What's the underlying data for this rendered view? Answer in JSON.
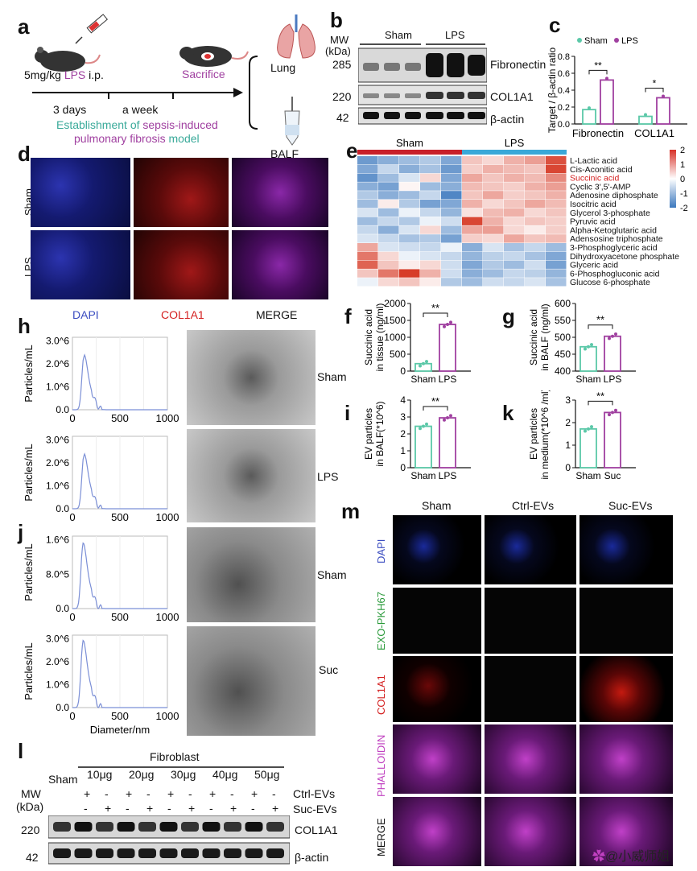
{
  "panels": {
    "a": "a",
    "b": "b",
    "c": "c",
    "d": "d",
    "e": "e",
    "f": "f",
    "g": "g",
    "h": "h",
    "i": "i",
    "j": "j",
    "k": "k",
    "l": "l",
    "m": "m"
  },
  "panel_a": {
    "dose_pre": "5mg/kg ",
    "dose_lps": "LPS",
    "dose_post": " i.p.",
    "sacrifice": "Sacrifice",
    "lung": "Lung",
    "balf": "BALF",
    "days": "3 days",
    "week": "a week",
    "caption1_a": "Establishment of ",
    "caption1_b": "sepsis-induced",
    "caption2_a": "pulmonary fibrosis",
    "caption2_b": " model"
  },
  "panel_b": {
    "mw": "MW",
    "kda": "(kDa)",
    "groups": [
      "Sham",
      "LPS"
    ],
    "rows": [
      {
        "mw": "285",
        "name": "Fibronectin"
      },
      {
        "mw": "220",
        "name": "COL1A1"
      },
      {
        "mw": "42",
        "name": "β-actin"
      }
    ]
  },
  "colors": {
    "sham": "#5bc8a8",
    "lps": "#a040a0",
    "heat_hi": "#d73027",
    "heat_lo": "#4575b4",
    "dapi": "#3a4cc0",
    "col": "#d42020",
    "merge": "#8a2aa0",
    "pkh": "#2a9a3a",
    "phall": "#c040c0"
  },
  "chart_data": [
    {
      "id": "c",
      "type": "bar",
      "ylabel": "Target / β-actin ratio",
      "categories": [
        "Fibronectin",
        "COL1A1"
      ],
      "series": [
        {
          "name": "Sham",
          "values": [
            0.17,
            0.09
          ]
        },
        {
          "name": "LPS",
          "values": [
            0.52,
            0.31
          ]
        }
      ],
      "ylim": [
        0,
        0.8
      ],
      "yticks": [
        "0.0",
        "0.2",
        "0.4",
        "0.6",
        "0.8"
      ],
      "sig": [
        "**",
        "*"
      ]
    },
    {
      "id": "f",
      "type": "bar",
      "ylabel": "Succinic acid in tissue (ng/ml)",
      "categories": [
        "Sham",
        "LPS"
      ],
      "values": [
        220,
        1380
      ],
      "ylim": [
        0,
        2000
      ],
      "yticks": [
        "0",
        "500",
        "1000",
        "1500",
        "2000"
      ],
      "sig": "**"
    },
    {
      "id": "g",
      "type": "bar",
      "ylabel": "Succinic acid in BALF (ng/ml)",
      "categories": [
        "Sham",
        "LPS"
      ],
      "values": [
        472,
        503
      ],
      "ylim": [
        400,
        600
      ],
      "yticks": [
        "400",
        "450",
        "500",
        "550",
        "600"
      ],
      "sig": "**"
    },
    {
      "id": "i",
      "type": "bar",
      "ylabel": "EV particles in BALF(*10^6)",
      "categories": [
        "Sham",
        "LPS"
      ],
      "values": [
        2.45,
        2.95
      ],
      "ylim": [
        0,
        4
      ],
      "yticks": [
        "0",
        "1",
        "2",
        "3",
        "4"
      ],
      "sig": "**"
    },
    {
      "id": "k",
      "type": "bar",
      "ylabel": "EV particles in medium(*10^6 /ml)",
      "categories": [
        "Sham",
        "Suc"
      ],
      "values": [
        1.72,
        2.45
      ],
      "ylim": [
        0,
        3
      ],
      "yticks": [
        "0",
        "1",
        "2",
        "3"
      ],
      "sig": "**"
    },
    {
      "id": "h1",
      "type": "line",
      "ylabel": "Particles/mL",
      "xlim": [
        0,
        1000
      ],
      "xticks": [
        "0",
        "500",
        "1000"
      ],
      "yticks": [
        "0.0",
        "1.0^6",
        "2.0^6",
        "3.0^6"
      ],
      "peak": [
        120,
        2.3
      ],
      "ymax": 3
    },
    {
      "id": "h2",
      "type": "line",
      "ylabel": "Particles/mL",
      "xlim": [
        0,
        1000
      ],
      "xticks": [
        "0",
        "500",
        "1000"
      ],
      "yticks": [
        "0.0",
        "1.0^6",
        "2.0^6",
        "3.0^6"
      ],
      "peak": [
        120,
        2.3
      ],
      "ymax": 3
    },
    {
      "id": "j1",
      "type": "line",
      "ylabel": "Particles/mL",
      "xlim": [
        0,
        1000
      ],
      "xticks": [
        "0",
        "500",
        "1000"
      ],
      "yticks": [
        "0.0",
        "8.0^5",
        "1.6^6"
      ],
      "peak": [
        110,
        1.55
      ],
      "ymax": 1.7
    },
    {
      "id": "j2",
      "type": "line",
      "ylabel": "Particles/mL",
      "xlabel": "Diameter/nm",
      "xlim": [
        0,
        1000
      ],
      "xticks": [
        "0",
        "500",
        "1000"
      ],
      "yticks": [
        "0.0",
        "1.0^6",
        "2.0^6",
        "3.0^6"
      ],
      "peak": [
        110,
        2.8
      ],
      "ymax": 3
    }
  ],
  "panel_e": {
    "groups": [
      "Sham",
      "LPS"
    ],
    "scale": [
      "2",
      "1",
      "0",
      "-1",
      "-2"
    ],
    "metabolites": [
      "L-Lactic acid",
      "Cis-Aconitic acid",
      "Succinic acid",
      "Cyclic 3',5'-AMP",
      "Adenosine diphosphate",
      "Isocitric acid",
      "Glycerol 3-phosphate",
      "Pyruvic acid",
      "Alpha-Ketoglutaric acid",
      "Adensosine triphosphate",
      "3-Phosphoglyceric acid",
      "Dihydroxyacetone phosphate",
      "Glyceric acid",
      "6-Phosphogluconic acid",
      "Glucose 6-phosphate"
    ],
    "highlight": "Succinic acid",
    "matrix": [
      [
        -1.5,
        -1.2,
        -1.0,
        -0.8,
        -1.3,
        0.6,
        0.4,
        0.8,
        1.0,
        1.8
      ],
      [
        -1.3,
        -0.6,
        -1.2,
        -0.9,
        -1.5,
        0.5,
        0.8,
        0.7,
        0.6,
        1.9
      ],
      [
        -1.6,
        -1.0,
        -0.4,
        0.4,
        -1.3,
        0.9,
        0.6,
        0.8,
        0.7,
        1.2
      ],
      [
        -1.2,
        -1.4,
        0.1,
        -1.0,
        -1.2,
        0.7,
        0.6,
        0.5,
        0.8,
        1.0
      ],
      [
        -0.8,
        -1.2,
        -1.0,
        -0.6,
        -1.8,
        0.6,
        0.9,
        0.5,
        0.6,
        0.8
      ],
      [
        -1.0,
        0.2,
        -0.8,
        -1.4,
        -1.3,
        0.8,
        0.4,
        0.6,
        0.9,
        0.7
      ],
      [
        -0.4,
        -1.0,
        -0.2,
        -0.6,
        -1.1,
        0.3,
        0.7,
        0.8,
        0.4,
        0.6
      ],
      [
        -1.0,
        -0.6,
        -0.8,
        -0.2,
        -0.5,
        1.9,
        0.8,
        0.4,
        0.6,
        0.5
      ],
      [
        -0.6,
        -1.2,
        -0.4,
        0.4,
        -1.0,
        0.9,
        1.0,
        0.4,
        0.2,
        0.5
      ],
      [
        -0.4,
        -0.6,
        -0.9,
        -0.8,
        -1.4,
        0.5,
        0.4,
        0.9,
        0.6,
        0.7
      ],
      [
        0.9,
        -0.4,
        -0.5,
        -0.6,
        -0.2,
        -1.2,
        -0.4,
        -0.9,
        -0.6,
        -1.0
      ],
      [
        1.4,
        0.4,
        -0.2,
        -0.4,
        -0.6,
        -1.1,
        -0.7,
        -0.6,
        -0.9,
        -1.3
      ],
      [
        1.6,
        0.6,
        0.2,
        0.4,
        -0.5,
        -1.3,
        -0.8,
        -1.0,
        -0.5,
        -1.4
      ],
      [
        0.6,
        1.4,
        2.0,
        0.8,
        -0.5,
        -1.2,
        -1.0,
        -0.6,
        -0.7,
        -1.1
      ],
      [
        -0.2,
        0.4,
        0.6,
        0.2,
        -0.8,
        -1.0,
        -0.5,
        -0.6,
        -0.4,
        -0.9
      ]
    ]
  },
  "panel_d": {
    "rows": [
      "Sham",
      "LPS"
    ]
  },
  "panel_h": {
    "channels": [
      "DAPI",
      "COL1A1",
      "MERGE"
    ],
    "tem_labels": [
      "Sham",
      "LPS"
    ]
  },
  "panel_j": {
    "tem_labels": [
      "Sham",
      "Suc"
    ]
  },
  "panel_l": {
    "title": "Fibroblast",
    "sham": "Sham",
    "doses": [
      "10μg",
      "20μg",
      "30μg",
      "40μg",
      "50μg"
    ],
    "mw": "MW",
    "kda": "(kDa)",
    "ctrl": "Ctrl-EVs",
    "suc": "Suc-EVs",
    "plus": "+",
    "minus": "-",
    "rows": [
      {
        "mw": "220",
        "name": "COL1A1"
      },
      {
        "mw": "42",
        "name": "β-actin"
      }
    ]
  },
  "panel_m": {
    "cols": [
      "Sham",
      "Ctrl-EVs",
      "Suc-EVs"
    ],
    "rows": [
      "DAPI",
      "EXO-PKH67",
      "COL1A1",
      "PHALLOIDIN",
      "MERGE"
    ]
  },
  "watermark": "@小威师姐"
}
